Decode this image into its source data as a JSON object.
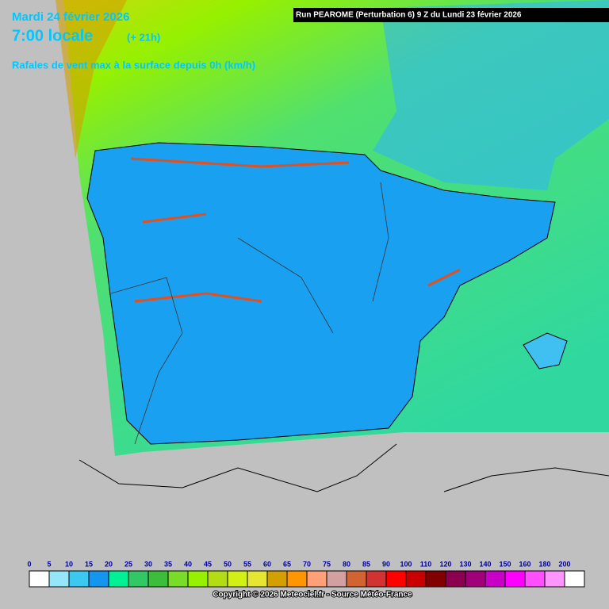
{
  "header": {
    "date": "Mardi 24 février 2026",
    "time": "7:00 locale",
    "offset": "(+ 21h)",
    "title": "Rafales de vent max à la surface depuis 0h (km/h)"
  },
  "run": "Run PEAROME (Perturbation 6) 9 Z du Lundi 23 février 2026",
  "legend": {
    "labels": [
      0,
      5,
      10,
      15,
      20,
      25,
      30,
      35,
      40,
      45,
      50,
      55,
      60,
      65,
      70,
      75,
      80,
      85,
      90,
      100,
      110,
      120,
      130,
      140,
      150,
      160,
      180,
      200
    ],
    "colors": [
      "#ffffff",
      "#96e6fa",
      "#3cc8f0",
      "#1496f0",
      "#00f096",
      "#32c864",
      "#3cbe3c",
      "#78dc28",
      "#96f000",
      "#b4dc14",
      "#d2f014",
      "#e6e632",
      "#d2a000",
      "#ff9600",
      "#ffa078",
      "#d2a0a0",
      "#d26432",
      "#d23232",
      "#ff0000",
      "#c80000",
      "#820000",
      "#8c0050",
      "#a00078",
      "#c800c8",
      "#ff00ff",
      "#ff50ff",
      "#ff96ff",
      "#ffffff"
    ]
  },
  "copyright": "Copyright © 2026 Meteociel.fr - Source Météo-France"
}
